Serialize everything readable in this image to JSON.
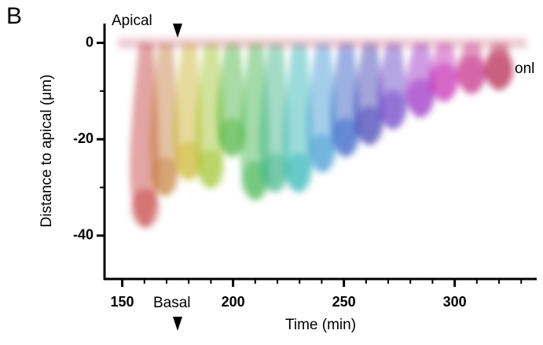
{
  "chart_data": {
    "type": "image",
    "panel_label": "B",
    "x_label": "Time (min)",
    "y_label": "Distance to apical (μm)",
    "annotations": {
      "top": "Apical",
      "bottom": "Basal",
      "right": "onl"
    },
    "xlim": [
      142,
      337
    ],
    "xticks": [
      150,
      200,
      250,
      300
    ],
    "x_minor_ticks": [
      160,
      170,
      180,
      190,
      210,
      220,
      230,
      240,
      260,
      270,
      280,
      290,
      310,
      320,
      330
    ],
    "ylim": [
      -49,
      4
    ],
    "yticks": [
      0,
      -20,
      -40
    ],
    "y_minor_ticks": [
      -10,
      -30
    ]
  }
}
